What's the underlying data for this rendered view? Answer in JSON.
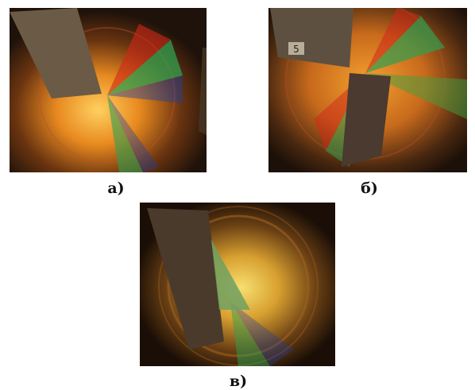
{
  "panels": [
    {
      "label": "а)"
    },
    {
      "label": "б)",
      "marker": "5"
    },
    {
      "label": "в)"
    }
  ]
}
